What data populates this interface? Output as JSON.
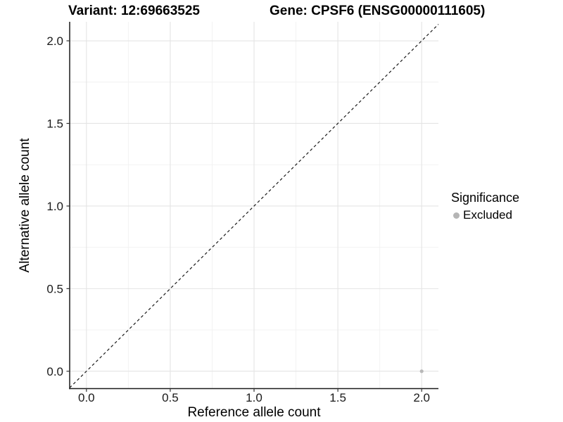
{
  "header": {
    "variant_title": "Variant: 12:69663525",
    "gene_title": "Gene: CPSF6 (ENSG00000111605)"
  },
  "legend": {
    "title": "Significance",
    "items": [
      {
        "label": "Excluded",
        "color": "#b5b5b5"
      }
    ]
  },
  "style": {
    "point_color": "#b8b8b8",
    "grid_major_color": "#e4e4e4",
    "grid_minor_color": "#f1f1f1",
    "axis_line_color": "#1a1a1a",
    "tick_color": "#333333",
    "tick_label_color": "#1a1a1a",
    "reference_line_color": "#1a1a1a"
  },
  "chart_data": {
    "type": "scatter",
    "x_axis": {
      "label": "Reference allele count",
      "range": [
        -0.1,
        2.1
      ],
      "ticks": [
        0,
        0.5,
        1,
        1.5,
        2
      ],
      "tick_labels": [
        "0.0",
        "0.5",
        "1.0",
        "1.5",
        "2.0"
      ],
      "minor_breaks": [
        0.25,
        0.75,
        1.25,
        1.75
      ]
    },
    "y_axis": {
      "label": "Alternative allele count",
      "range": [
        -0.105,
        2.115
      ],
      "ticks": [
        0,
        0.5,
        1,
        1.5,
        2
      ],
      "tick_labels": [
        "0.0",
        "0.5",
        "1.0",
        "1.5",
        "2.0"
      ],
      "minor_breaks": [
        0.25,
        0.75,
        1.25,
        1.75
      ]
    },
    "points": [
      {
        "x": 2,
        "y": 0,
        "series": "Excluded"
      }
    ],
    "reference_line": {
      "kind": "identity",
      "style": "dashed"
    },
    "grid": "on",
    "legend_position": "right"
  }
}
